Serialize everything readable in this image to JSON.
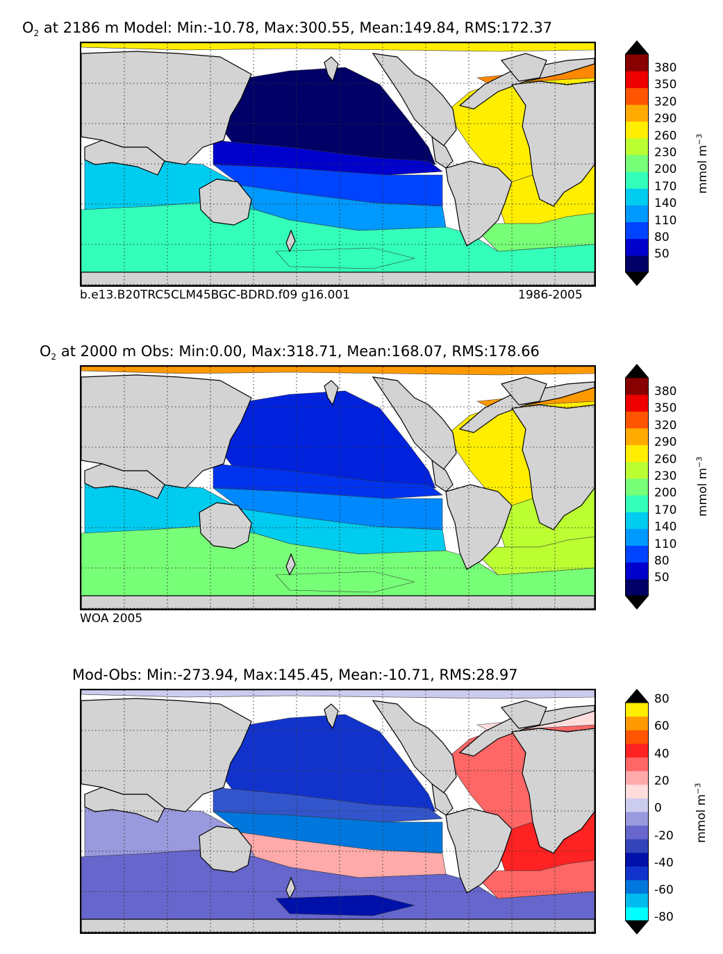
{
  "chart_data": [
    {
      "type": "heatmap",
      "title_prefix": "O",
      "title_sub": "2",
      "title": " at 2186 m Model: Min:-10.78, Max:300.55, Mean:149.84, RMS:172.37",
      "stats": {
        "min": -10.78,
        "max": 300.55,
        "mean": 149.84,
        "rms": 172.37
      },
      "caption_left": "b.e13.B20TRC5CLM45BGC-BDRD.f09 g16.001",
      "caption_right": "1986-2005",
      "colorbar": {
        "ticks": [
          "380",
          "350",
          "320",
          "290",
          "260",
          "230",
          "200",
          "170",
          "140",
          "110",
          "80",
          "50"
        ],
        "colors": [
          "#000066",
          "#0000cc",
          "#0044ff",
          "#0099ff",
          "#00ccf0",
          "#33ffbb",
          "#77ff77",
          "#bbff33",
          "#ffee00",
          "#ffaa00",
          "#ff5500",
          "#ee0000",
          "#880000"
        ],
        "label": "mmol m",
        "label_sup": "−3"
      },
      "fields": {
        "arctic": "#ffee00",
        "north_pacific": "#000066",
        "nw_pacific_band": "#0000cc",
        "tropical_pacific": "#0044ff",
        "south_pacific": "#0099ff",
        "indian": "#00ccf0",
        "southern_ocean": "#33ffbb",
        "north_atlantic": "#ffee00",
        "labrador": "#ff8800",
        "south_atlantic": "#ffee00",
        "sw_atlantic": "#77ff77",
        "ross_sea": "#33ffbb"
      }
    },
    {
      "type": "heatmap",
      "title_prefix": "O",
      "title_sub": "2",
      "title": " at 2000 m Obs: Min:0.00, Max:318.71, Mean:168.07, RMS:178.66",
      "stats": {
        "min": 0.0,
        "max": 318.71,
        "mean": 168.07,
        "rms": 178.66
      },
      "caption_left": "WOA 2005",
      "caption_right": "",
      "colorbar": {
        "ticks": [
          "380",
          "350",
          "320",
          "290",
          "260",
          "230",
          "200",
          "170",
          "140",
          "110",
          "80",
          "50"
        ],
        "colors": [
          "#000066",
          "#0000cc",
          "#0044ff",
          "#0099ff",
          "#00ccf0",
          "#33ffbb",
          "#77ff77",
          "#bbff33",
          "#ffee00",
          "#ffaa00",
          "#ff5500",
          "#ee0000",
          "#880000"
        ],
        "label": "mmol m",
        "label_sup": "−3"
      },
      "fields": {
        "arctic": "#ff9900",
        "north_pacific": "#0022dd",
        "nw_pacific_band": "#0033ee",
        "tropical_pacific": "#0088ff",
        "south_pacific": "#00ccf0",
        "indian": "#00ccf0",
        "southern_ocean": "#77ff77",
        "north_atlantic": "#ffee00",
        "labrador": "#ff9900",
        "south_atlantic": "#bbff33",
        "sw_atlantic": "#bbff33",
        "ross_sea": "#77ff77"
      }
    },
    {
      "type": "heatmap",
      "title": "Mod-Obs: Min:-273.94, Max:145.45, Mean:-10.71, RMS:28.97",
      "stats": {
        "min": -273.94,
        "max": 145.45,
        "mean": -10.71,
        "rms": 28.97
      },
      "colorbar": {
        "ticks": [
          "80",
          "60",
          "40",
          "20",
          "0",
          "-20",
          "-40",
          "-60",
          "-80"
        ],
        "colors": [
          "#00ffff",
          "#00bbee",
          "#0077dd",
          "#1133cc",
          "#0011aa",
          "#3344bb",
          "#6666cc",
          "#9999dd",
          "#ccccee",
          "#ffdddd",
          "#ffaaaa",
          "#ff6666",
          "#ff2222",
          "#ff5500",
          "#ff9900",
          "#ffee00"
        ],
        "label": "mmol m",
        "label_sup": "−3"
      },
      "fields": {
        "arctic": "#ccccee",
        "north_pacific": "#1133cc",
        "nw_pacific_band": "#3355cc",
        "tropical_pacific": "#0077dd",
        "south_pacific": "#ffaaaa",
        "indian": "#9999dd",
        "southern_ocean": "#6666cc",
        "north_atlantic": "#ff6666",
        "labrador": "#ffdddd",
        "south_atlantic": "#ff2222",
        "sw_atlantic": "#ff6666",
        "ross_sea": "#0011aa"
      }
    }
  ]
}
